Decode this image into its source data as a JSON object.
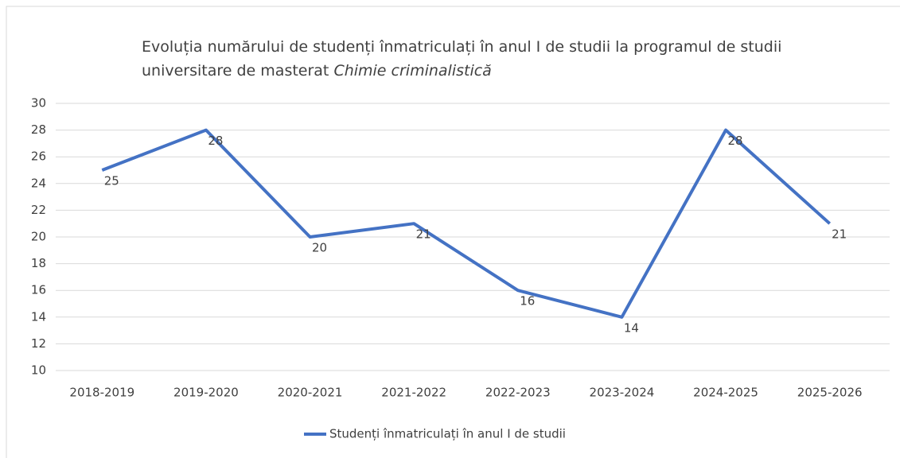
{
  "chart_data": {
    "type": "line",
    "title": "Evoluția numărului de studenți înmatriculați în anul I de studii la programul de studii universitare de masterat",
    "title_italic": "Chimie criminalistică",
    "categories": [
      "2018-2019",
      "2019-2020",
      "2020-2021",
      "2021-2022",
      "2022-2023",
      "2023-2024",
      "2024-2025",
      "2025-2026"
    ],
    "series": [
      {
        "name": "Studenți înmatriculați în anul I de studii",
        "color": "#4472c4",
        "values": [
          25,
          28,
          20,
          21,
          16,
          14,
          28,
          21
        ]
      }
    ],
    "ylim": [
      10,
      30
    ],
    "yticks": [
      10,
      12,
      14,
      16,
      18,
      20,
      22,
      24,
      26,
      28,
      30
    ],
    "grid": true,
    "legend": "bottom"
  }
}
